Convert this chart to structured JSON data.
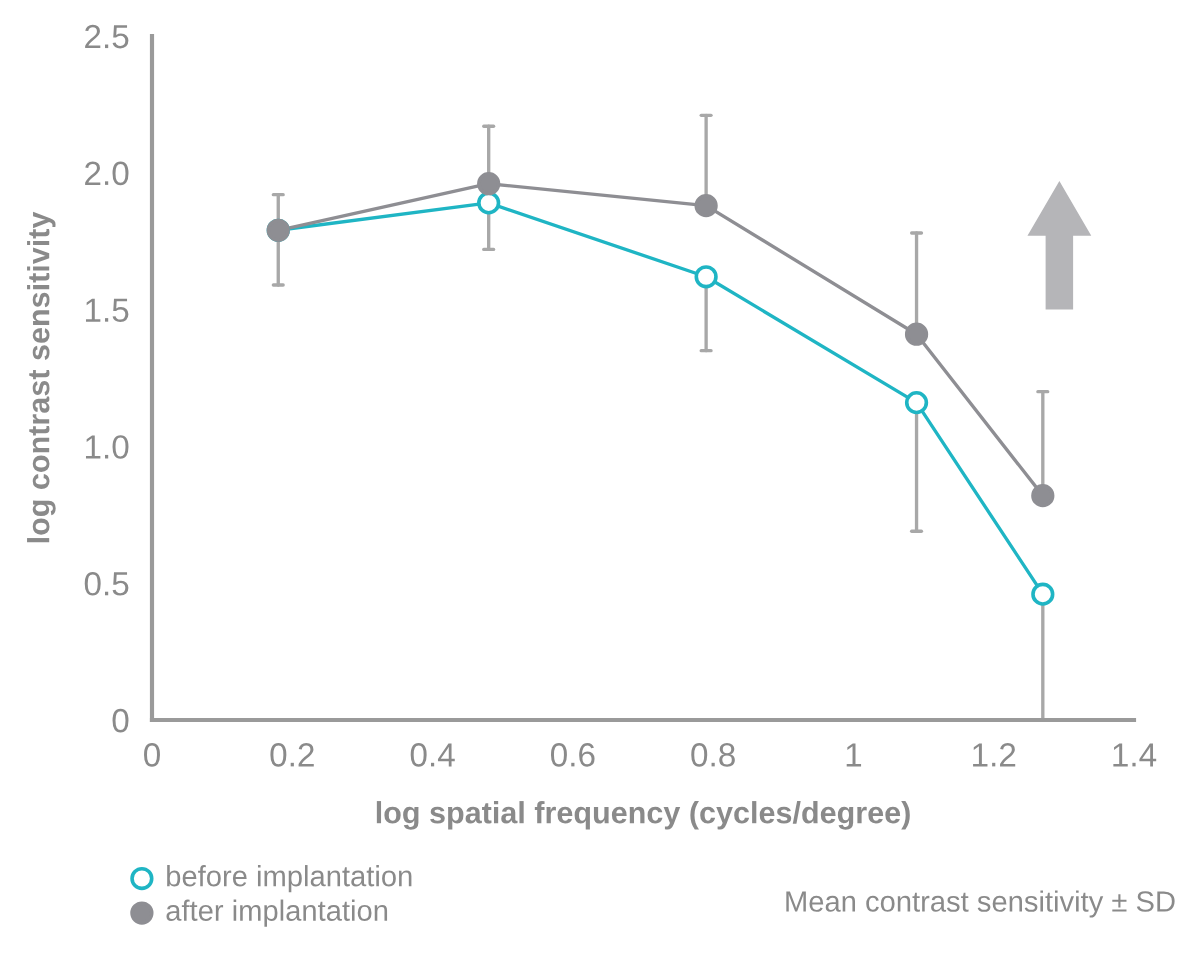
{
  "chart_data": {
    "type": "line",
    "x": [
      0.18,
      0.48,
      0.79,
      1.09,
      1.27
    ],
    "series": [
      {
        "name": "before implantation",
        "color": "#1fb5c4",
        "marker": "open_circle",
        "values": [
          1.79,
          1.89,
          1.62,
          1.16,
          0.46
        ],
        "errors": [
          [
            1.59,
            1.79
          ],
          [
            1.72,
            1.89
          ],
          [
            1.35,
            1.62
          ],
          [
            0.69,
            1.16
          ],
          [
            0,
            0.46
          ]
        ]
      },
      {
        "name": "after implantation",
        "color": "#8e8e93",
        "marker": "circle",
        "values": [
          1.79,
          1.96,
          1.88,
          1.41,
          0.82
        ],
        "errors": [
          [
            1.79,
            1.92
          ],
          [
            1.96,
            2.17
          ],
          [
            1.88,
            2.21
          ],
          [
            1.41,
            1.78
          ],
          [
            0.82,
            1.2
          ]
        ]
      }
    ],
    "xlim": [
      0,
      1.4
    ],
    "xticks": [
      0,
      0.2,
      0.4,
      0.6,
      0.8,
      1,
      1.2,
      1.4
    ],
    "ylim": [
      0,
      2.5
    ],
    "yticks": [
      0,
      0.5,
      {
        "value": 1,
        "label": "1.0"
      },
      1.5,
      {
        "value": 2,
        "label": "2.0"
      },
      2.5
    ],
    "xlabel": "log spatial frequency (cycles/degree)",
    "ylabel": "log contrast sensitivity",
    "annotations": [
      "Mean contrast sensitivity ± SD"
    ],
    "grid": false,
    "legend": "bottom left"
  }
}
